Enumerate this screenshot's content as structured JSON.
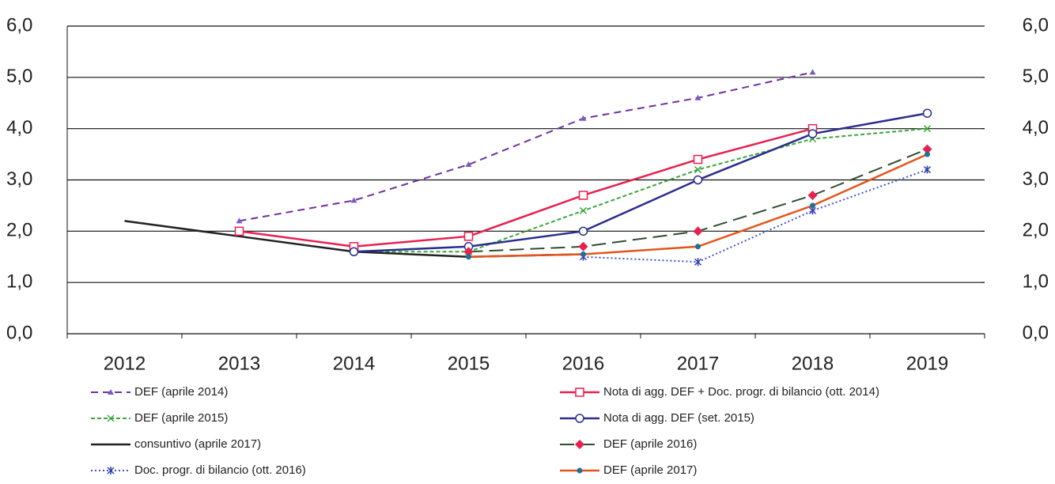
{
  "chart_data": {
    "type": "line",
    "categories": [
      "2012",
      "2013",
      "2014",
      "2015",
      "2016",
      "2017",
      "2018",
      "2019"
    ],
    "ylim": [
      0,
      6
    ],
    "yticks": [
      {
        "value": 0,
        "label": "0,0"
      },
      {
        "value": 1,
        "label": "1,0"
      },
      {
        "value": 2,
        "label": "2,0"
      },
      {
        "value": 3,
        "label": "3,0"
      },
      {
        "value": 4,
        "label": "4,0"
      },
      {
        "value": 5,
        "label": "5,0"
      },
      {
        "value": 6,
        "label": "6,0"
      }
    ],
    "y2lim": [
      0,
      6
    ],
    "y2ticks": [
      {
        "value": 0,
        "label": "0,0"
      },
      {
        "value": 1,
        "label": "1,0"
      },
      {
        "value": 2,
        "label": "2,0"
      },
      {
        "value": 3,
        "label": "3,0"
      },
      {
        "value": 4,
        "label": "4,0"
      },
      {
        "value": 5,
        "label": "5,0"
      },
      {
        "value": 6,
        "label": "6,0"
      }
    ],
    "grid": true,
    "series": [
      {
        "name": "DEF (aprile 2014)",
        "color": "#7030a0",
        "dash": "dashed",
        "marker": "triangle",
        "marker_color": "#7a5cc0",
        "values": [
          null,
          2.2,
          2.6,
          3.3,
          4.2,
          4.6,
          5.1,
          null
        ]
      },
      {
        "name": "DEF (aprile 2015)",
        "color": "#3aa63a",
        "dash": "dotted-dash",
        "marker": "x",
        "marker_color": "#3aa63a",
        "values": [
          null,
          null,
          1.6,
          1.6,
          2.4,
          3.2,
          3.8,
          4.0
        ]
      },
      {
        "name": "consuntivo (aprile 2017)",
        "color": "#222222",
        "dash": "solid",
        "marker": "none",
        "marker_color": "#222222",
        "values": [
          2.2,
          1.9,
          1.6,
          1.5,
          1.55,
          null,
          null,
          null
        ]
      },
      {
        "name": "Doc. progr. di bilancio (ott. 2016)",
        "color": "#4050d0",
        "dash": "dotted",
        "marker": "star",
        "marker_color": "#3040b0",
        "values": [
          null,
          null,
          null,
          null,
          1.5,
          1.4,
          2.4,
          3.2
        ]
      },
      {
        "name": "Nota di agg. DEF + Doc. progr. di bilancio (ott. 2014)",
        "color": "#e8204f",
        "dash": "solid",
        "marker": "square",
        "marker_color": "#e8204f",
        "values": [
          null,
          2.0,
          1.7,
          1.9,
          2.7,
          3.4,
          4.0,
          null
        ]
      },
      {
        "name": "Nota di agg. DEF (set. 2015)",
        "color": "#2b2e8c",
        "dash": "solid",
        "marker": "circle",
        "marker_color": "#2b2e8c",
        "values": [
          null,
          null,
          1.6,
          1.7,
          2.0,
          3.0,
          3.9,
          4.3
        ]
      },
      {
        "name": "DEF (aprile 2016)",
        "color": "#2e4e2e",
        "dash": "long-dash",
        "marker": "diamond",
        "marker_color": "#e8204f",
        "values": [
          null,
          null,
          null,
          1.6,
          1.7,
          2.0,
          2.7,
          3.6
        ]
      },
      {
        "name": "DEF (aprile 2017)",
        "color": "#e2561c",
        "dash": "solid",
        "marker": "dot",
        "marker_color": "#1f6f9a",
        "values": [
          null,
          null,
          null,
          1.5,
          1.55,
          1.7,
          2.5,
          3.5
        ]
      }
    ]
  }
}
